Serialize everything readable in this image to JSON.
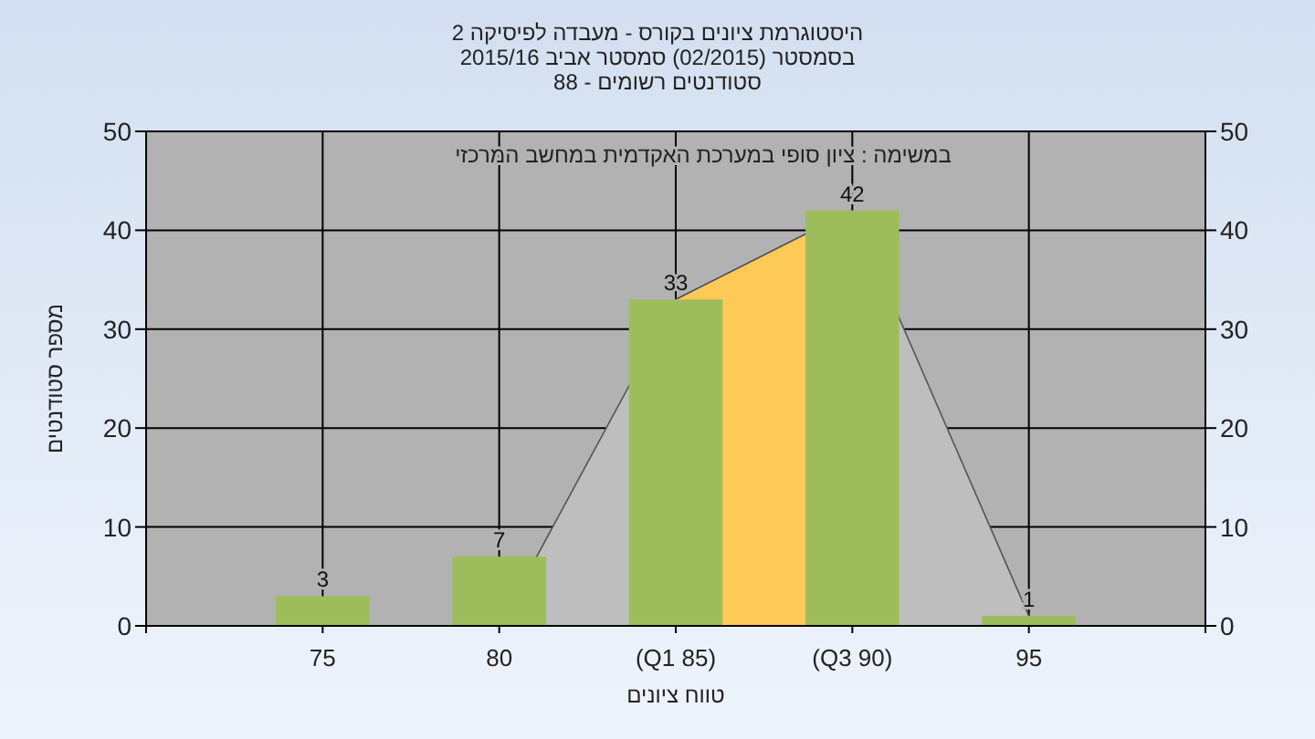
{
  "chart_data": {
    "type": "bar",
    "title": "היסטוגרמת ציונים בקורס - מעבדה לפיסיקה 2",
    "subtitle": "בסמסטר  (02/2015)  סמסטר אביב 2015/16\nסטודנטים רשומים - 88",
    "xlabel": "טווח ציונים",
    "ylabel": "מספר סטודנטים",
    "annotations": [
      "במשימה : ציון סופי במערכת האקדמית במחשב המרכזי"
    ],
    "categories": [
      "75",
      "80",
      "(Q1 85)",
      "(Q3 90)",
      "95"
    ],
    "series": [
      {
        "type": "area",
        "color": "#bebebe",
        "values": [
          0,
          0,
          33,
          42,
          1
        ]
      },
      {
        "type": "area",
        "color": "#fdc957",
        "values": [
          null,
          null,
          33,
          42,
          null
        ]
      },
      {
        "color": "#9dbd5a",
        "values": [
          3,
          7,
          33,
          42,
          1
        ],
        "value_labels": [
          "3",
          "7",
          "33",
          "42",
          "1"
        ]
      }
    ],
    "ylim": [
      0,
      50
    ],
    "yticks": [
      0,
      10,
      20,
      30,
      40,
      50
    ],
    "y2lim": [
      0,
      50
    ],
    "y2ticks": [
      0,
      10,
      20,
      30,
      40,
      50
    ],
    "grid": true
  }
}
